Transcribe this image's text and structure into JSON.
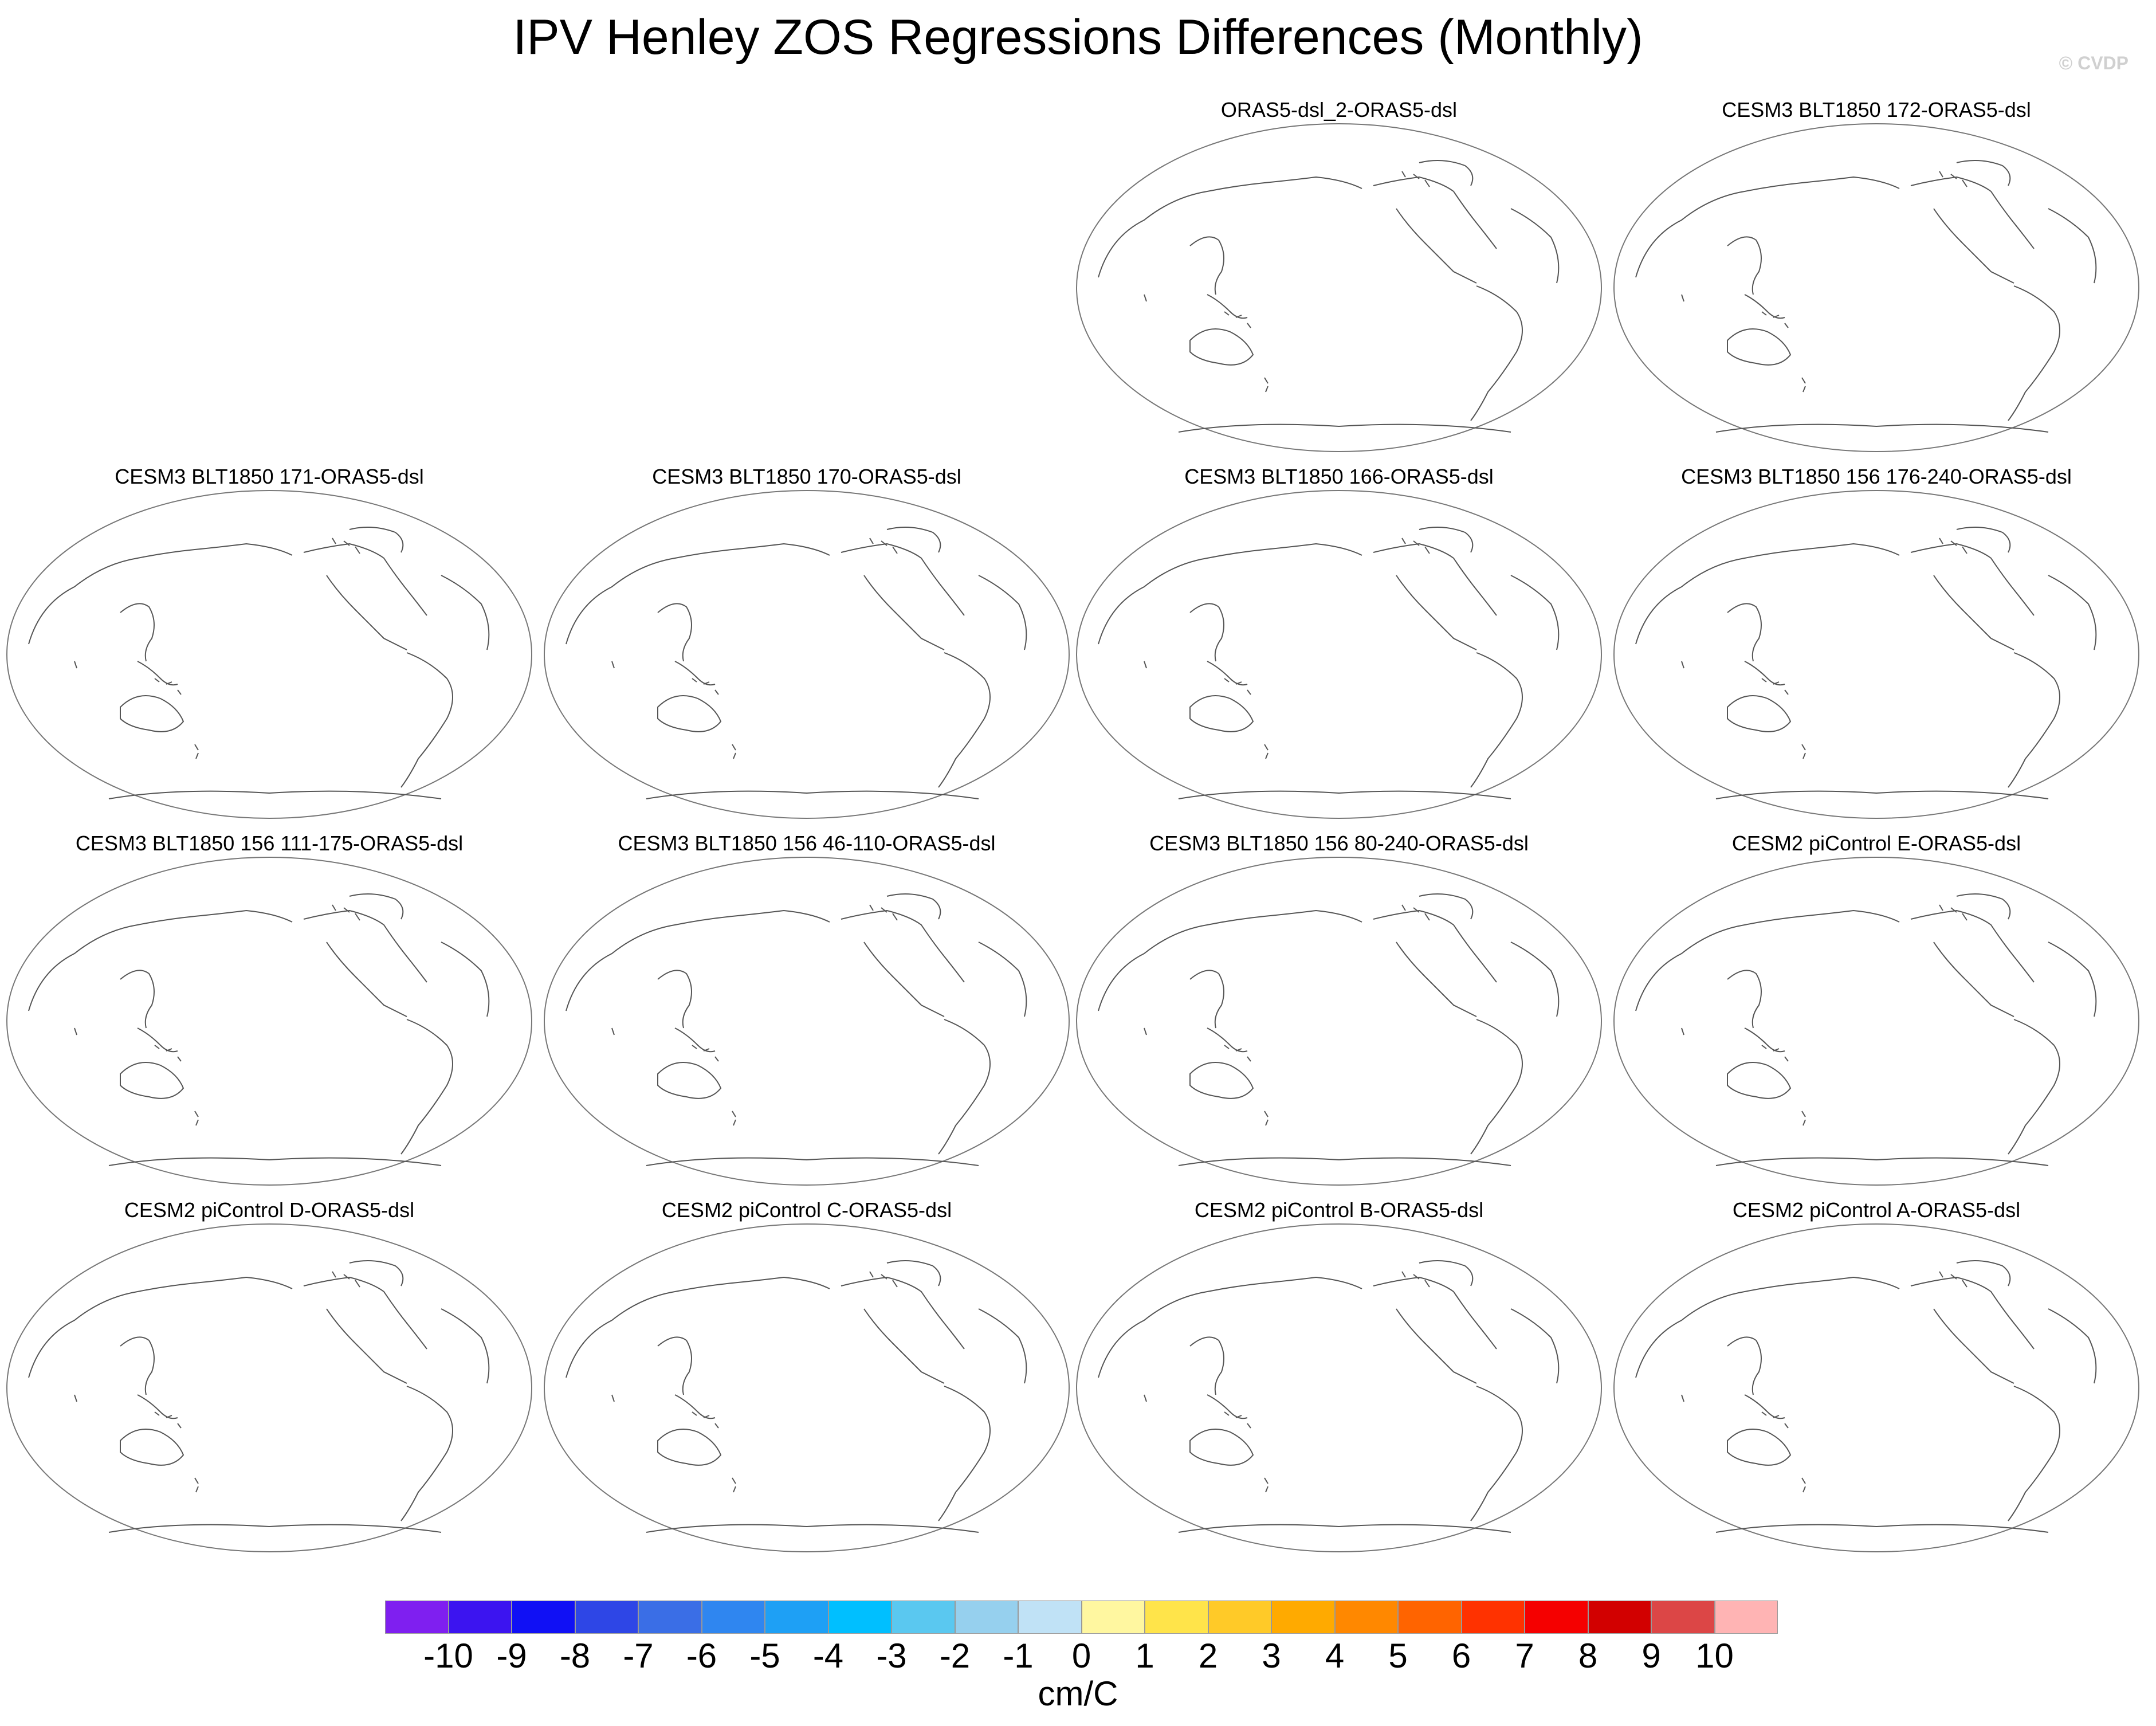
{
  "title": "IPV Henley ZOS Regressions Differences (Monthly)",
  "watermark": "© CVDP",
  "panels": [
    {
      "title": "ORAS5-dsl_2-ORAS5-dsl"
    },
    {
      "title": "CESM3 BLT1850 172-ORAS5-dsl"
    },
    {
      "title": "CESM3 BLT1850 171-ORAS5-dsl"
    },
    {
      "title": "CESM3 BLT1850 170-ORAS5-dsl"
    },
    {
      "title": "CESM3 BLT1850 166-ORAS5-dsl"
    },
    {
      "title": "CESM3 BLT1850 156 176-240-ORAS5-dsl"
    },
    {
      "title": "CESM3 BLT1850 156 111-175-ORAS5-dsl"
    },
    {
      "title": "CESM3 BLT1850 156 46-110-ORAS5-dsl"
    },
    {
      "title": "CESM3 BLT1850 156 80-240-ORAS5-dsl"
    },
    {
      "title": "CESM2 piControl E-ORAS5-dsl"
    },
    {
      "title": "CESM2 piControl D-ORAS5-dsl"
    },
    {
      "title": "CESM2 piControl C-ORAS5-dsl"
    },
    {
      "title": "CESM2 piControl B-ORAS5-dsl"
    },
    {
      "title": "CESM2 piControl A-ORAS5-dsl"
    }
  ],
  "colorbar": {
    "colors": [
      "#7f1ff0",
      "#3c14f0",
      "#1010f5",
      "#2e46e6",
      "#3a6ee6",
      "#2f86f0",
      "#1ea0f5",
      "#00bfff",
      "#5ac8f0",
      "#96d0ee",
      "#c0e2f6",
      "#fff7a0",
      "#ffe44a",
      "#ffca28",
      "#ffaa00",
      "#ff8800",
      "#ff6400",
      "#ff3200",
      "#f50000",
      "#d20000",
      "#dc4646",
      "#ffb4b4"
    ],
    "labels": [
      "-10",
      "-9",
      "-8",
      "-7",
      "-6",
      "-5",
      "-4",
      "-3",
      "-2",
      "-1",
      "0",
      "1",
      "2",
      "3",
      "4",
      "5",
      "6",
      "7",
      "8",
      "9",
      "10"
    ],
    "units": "cm/C"
  }
}
